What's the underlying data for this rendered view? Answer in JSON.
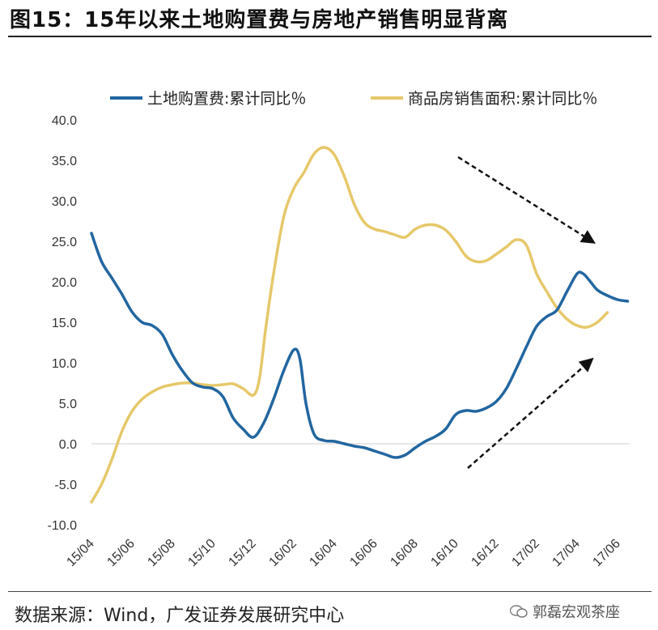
{
  "title": "图15：15年以来土地购置费与房地产销售明显背离",
  "source": "数据来源：Wind，广发证券发展研究中心",
  "watermark": "郭磊宏观茶座",
  "colors": {
    "land": "#2166A0",
    "sales": "#E6C86A",
    "arrow": "#111111"
  },
  "chart_data": {
    "type": "line",
    "title": "",
    "ylim": [
      -10,
      40
    ],
    "yticks": [
      "40.0",
      "35.0",
      "30.0",
      "25.0",
      "20.0",
      "15.0",
      "10.0",
      "5.0",
      "0.0",
      "-5.0",
      "-10.0"
    ],
    "ytick_values": [
      40,
      35,
      30,
      25,
      20,
      15,
      10,
      5,
      0,
      -5,
      -10
    ],
    "xticks": [
      "15/04",
      "15/06",
      "15/08",
      "15/10",
      "15/12",
      "16/02",
      "16/04",
      "16/06",
      "16/08",
      "16/10",
      "16/12",
      "17/02",
      "17/04",
      "17/06"
    ],
    "xtick_positions": [
      0,
      2,
      4,
      6,
      8,
      10,
      12,
      14,
      16,
      18,
      20,
      22,
      24,
      26
    ],
    "series": [
      {
        "name": "土地购置费:累计同比％",
        "points": [
          [
            0,
            26
          ],
          [
            0.5,
            22.5
          ],
          [
            1,
            20.5
          ],
          [
            1.5,
            18.5
          ],
          [
            2,
            16.3
          ],
          [
            2.5,
            15
          ],
          [
            3,
            14.6
          ],
          [
            3.5,
            13.5
          ],
          [
            4,
            11
          ],
          [
            4.5,
            9
          ],
          [
            5,
            7.5
          ],
          [
            5.5,
            7
          ],
          [
            6,
            6.8
          ],
          [
            6.5,
            5.8
          ],
          [
            7,
            3.2
          ],
          [
            7.5,
            1.8
          ],
          [
            8,
            0.8
          ],
          [
            8.5,
            2.5
          ],
          [
            9,
            5.5
          ],
          [
            9.5,
            9
          ],
          [
            10,
            11.6
          ],
          [
            10.3,
            10.5
          ],
          [
            10.6,
            5
          ],
          [
            11,
            1.2
          ],
          [
            11.5,
            0.4
          ],
          [
            12,
            0.3
          ],
          [
            12.5,
            0
          ],
          [
            13,
            -0.3
          ],
          [
            13.5,
            -0.5
          ],
          [
            14,
            -0.9
          ],
          [
            14.5,
            -1.3
          ],
          [
            15,
            -1.7
          ],
          [
            15.5,
            -1.4
          ],
          [
            16,
            -0.5
          ],
          [
            16.5,
            0.3
          ],
          [
            17,
            0.9
          ],
          [
            17.5,
            1.8
          ],
          [
            18,
            3.6
          ],
          [
            18.5,
            4.1
          ],
          [
            19,
            4
          ],
          [
            19.5,
            4.4
          ],
          [
            20,
            5.2
          ],
          [
            20.5,
            6.8
          ],
          [
            21,
            9.3
          ],
          [
            21.5,
            12
          ],
          [
            22,
            14.5
          ],
          [
            22.5,
            15.7
          ],
          [
            23,
            16.5
          ],
          [
            23.5,
            18.8
          ],
          [
            24,
            21
          ],
          [
            24.3,
            21
          ],
          [
            24.6,
            20.2
          ],
          [
            25,
            19
          ],
          [
            25.5,
            18.3
          ],
          [
            26,
            17.8
          ],
          [
            26.5,
            17.6
          ]
        ]
      },
      {
        "name": "商品房销售面积:累计同比％",
        "points": [
          [
            0,
            -7.2
          ],
          [
            0.5,
            -5
          ],
          [
            1,
            -2
          ],
          [
            1.5,
            1.5
          ],
          [
            2,
            4
          ],
          [
            2.5,
            5.5
          ],
          [
            3,
            6.4
          ],
          [
            3.5,
            7
          ],
          [
            4,
            7.3
          ],
          [
            4.5,
            7.5
          ],
          [
            5,
            7.5
          ],
          [
            5.5,
            7.3
          ],
          [
            6,
            7.2
          ],
          [
            6.5,
            7.3
          ],
          [
            7,
            7.4
          ],
          [
            7.5,
            6.8
          ],
          [
            8,
            6
          ],
          [
            8.3,
            8
          ],
          [
            8.6,
            14
          ],
          [
            9,
            21
          ],
          [
            9.5,
            28
          ],
          [
            10,
            31.5
          ],
          [
            10.5,
            33.5
          ],
          [
            11,
            35.8
          ],
          [
            11.5,
            36.6
          ],
          [
            12,
            35.7
          ],
          [
            12.5,
            33
          ],
          [
            13,
            29.5
          ],
          [
            13.5,
            27.3
          ],
          [
            14,
            26.5
          ],
          [
            14.5,
            26.2
          ],
          [
            15,
            25.8
          ],
          [
            15.5,
            25.5
          ],
          [
            16,
            26.5
          ],
          [
            16.5,
            27
          ],
          [
            17,
            27
          ],
          [
            17.5,
            26.4
          ],
          [
            18,
            25
          ],
          [
            18.5,
            23.2
          ],
          [
            19,
            22.5
          ],
          [
            19.5,
            22.6
          ],
          [
            20,
            23.4
          ],
          [
            20.5,
            24.3
          ],
          [
            21,
            25.2
          ],
          [
            21.5,
            24.5
          ],
          [
            22,
            21
          ],
          [
            22.5,
            18.8
          ],
          [
            23,
            16.8
          ],
          [
            23.5,
            15.4
          ],
          [
            24,
            14.6
          ],
          [
            24.5,
            14.4
          ],
          [
            25,
            15
          ],
          [
            25.5,
            16.2
          ]
        ]
      }
    ],
    "annotations": [
      "arrow-down-right",
      "arrow-up-right"
    ]
  }
}
